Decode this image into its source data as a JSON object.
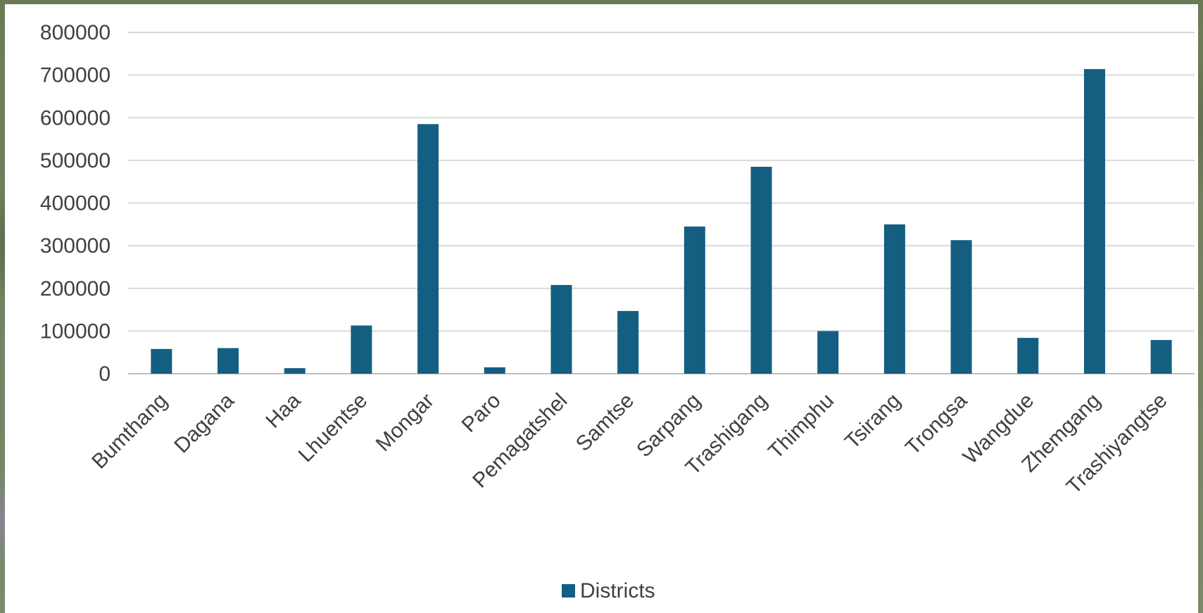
{
  "chart_data": {
    "type": "bar",
    "categories": [
      "Bumthang",
      "Dagana",
      "Haa",
      "Lhuentse",
      "Mongar",
      "Paro",
      "Pemagatshel",
      "Samtse",
      "Sarpang",
      "Trashigang",
      "Thimphu",
      "Tsirang",
      "Trongsa",
      "Wangdue",
      "Zhemgang",
      "Trashiyangtse"
    ],
    "series": [
      {
        "name": "Districts",
        "color": "#145e82",
        "values": [
          58000,
          60000,
          13000,
          113000,
          585000,
          15000,
          208000,
          147000,
          345000,
          485000,
          100000,
          350000,
          313000,
          84000,
          714000,
          79000
        ]
      }
    ],
    "y_ticks": [
      "0",
      "100000",
      "200000",
      "300000",
      "400000",
      "500000",
      "600000",
      "700000",
      "800000"
    ],
    "ylim": [
      0,
      800000
    ],
    "grid": true,
    "legend_position": "bottom"
  }
}
